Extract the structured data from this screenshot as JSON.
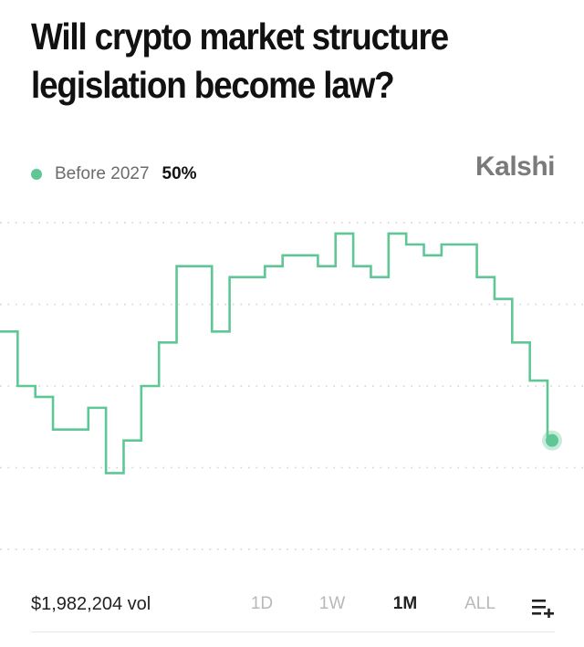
{
  "title": "Will crypto market structure legislation become law?",
  "brand": "Kalshi",
  "legend": {
    "label": "Before 2027",
    "value": "50%"
  },
  "colors": {
    "series": "#5ec795",
    "grid": "#cfcfcf",
    "brand": "#7a7a7a"
  },
  "footer": {
    "volume": "$1,982,204 vol",
    "tabs": [
      {
        "label": "1D",
        "active": false
      },
      {
        "label": "1W",
        "active": false
      },
      {
        "label": "1M",
        "active": true
      },
      {
        "label": "ALL",
        "active": false
      }
    ],
    "menu_icon": "add-to-list-icon"
  },
  "chart_data": {
    "type": "line",
    "step": true,
    "title": "",
    "xlabel": "",
    "ylabel": "",
    "grid": "horizontal-dotted",
    "ylim": [
      40,
      70
    ],
    "x": [
      0,
      1,
      2,
      3,
      4,
      5,
      6,
      7,
      8,
      9,
      10,
      11,
      12,
      13,
      14,
      15,
      16,
      17,
      18,
      19,
      20,
      21,
      22,
      23,
      24,
      25,
      26,
      27,
      28,
      29,
      30
    ],
    "series": [
      {
        "name": "Before 2027",
        "values": [
          60,
          55,
          54,
          51,
          51,
          53,
          47,
          50,
          55,
          59,
          66,
          66,
          60,
          65,
          65,
          66,
          67,
          67,
          66,
          69,
          66,
          65,
          69,
          68,
          67,
          68,
          68,
          65,
          63,
          59,
          55.5
        ],
        "end_value": 50
      }
    ]
  }
}
